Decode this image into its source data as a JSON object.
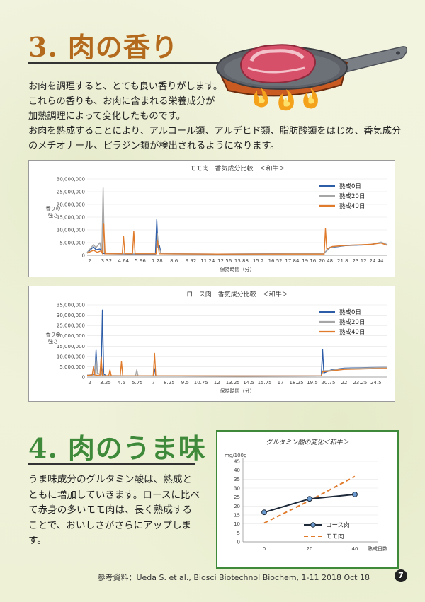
{
  "section3": {
    "title": "3. 肉の香り",
    "paragraph_lines": [
      "お肉を調理すると、とても良い香りがします。",
      "これらの香りも、お肉に含まれる栄養成分が",
      "加熱調理によって変化したものです。",
      "お肉を熟成することにより、アルコール類、アルデヒド類、脂肪酸類をはじめ、香気成分",
      "のメチオナール、ピラジン類が検出されるようになります。"
    ]
  },
  "section4": {
    "title": "4. 肉のうま味",
    "paragraph_lines": [
      "うま味成分のグルタミン酸は、熟成と",
      "ともに増加していきます。ロースに比べ",
      "て赤身の多いモモ肉は、長く熟成する",
      "ことで、おいしさがさらにアップします。"
    ]
  },
  "reference": "参考資料：Ueda S. et al., Biosci Biotechnol Biochem, 1-11 2018 Oct 18",
  "page_number": "7",
  "chart_data": [
    {
      "type": "line",
      "title": "モモ肉　香気成分比較　＜和牛＞",
      "ylabel": "香りの強さ",
      "xlabel": "保持時間（分）",
      "y_ticks": [
        "0",
        "5,000,000",
        "10,000,000",
        "15,000,000",
        "20,000,000",
        "25,000,000",
        "30,000,000"
      ],
      "x_ticks": [
        "2",
        "3.32",
        "4.64",
        "5.96",
        "7.28",
        "8.6",
        "9.92",
        "11.24",
        "12.56",
        "13.88",
        "15.2",
        "16.52",
        "17.84",
        "19.16",
        "20.48",
        "21.8",
        "23.12",
        "24.44"
      ],
      "ylim": [
        0,
        30000000
      ],
      "xlim": [
        1.8,
        25.3
      ],
      "legend_position": "right",
      "series": [
        {
          "name": "熟成0日",
          "color": "#2e5da8",
          "points": [
            [
              1.8,
              1000000
            ],
            [
              2.3,
              3300000
            ],
            [
              2.5,
              2200000
            ],
            [
              2.8,
              2500000
            ],
            [
              3.0,
              900000
            ],
            [
              3.2,
              600000
            ],
            [
              5.0,
              500000
            ],
            [
              7.15,
              500000
            ],
            [
              7.25,
              14000000
            ],
            [
              7.35,
              3000000
            ],
            [
              7.45,
              4000000
            ],
            [
              7.6,
              600000
            ],
            [
              12,
              500000
            ],
            [
              20.3,
              700000
            ],
            [
              20.8,
              3000000
            ],
            [
              22,
              3800000
            ],
            [
              24,
              4200000
            ],
            [
              24.8,
              5000000
            ],
            [
              25.3,
              4000000
            ]
          ]
        },
        {
          "name": "熟成20日",
          "color": "#a6a6a6",
          "points": [
            [
              1.8,
              1100000
            ],
            [
              2.3,
              4200000
            ],
            [
              2.5,
              3000000
            ],
            [
              2.8,
              5000000
            ],
            [
              2.95,
              1000000
            ],
            [
              3.05,
              26500000
            ],
            [
              3.15,
              1000000
            ],
            [
              4.6,
              600000
            ],
            [
              7.2,
              600000
            ],
            [
              7.3,
              8500000
            ],
            [
              7.4,
              3500000
            ],
            [
              7.6,
              600000
            ],
            [
              12,
              500000
            ],
            [
              20.3,
              700000
            ],
            [
              20.8,
              3200000
            ],
            [
              22,
              3900000
            ],
            [
              24,
              4300000
            ],
            [
              24.8,
              5200000
            ],
            [
              25.3,
              4200000
            ]
          ]
        },
        {
          "name": "熟成40日",
          "color": "#e07b2c",
          "points": [
            [
              1.8,
              900000
            ],
            [
              2.3,
              2000000
            ],
            [
              2.6,
              1200000
            ],
            [
              2.9,
              1800000
            ],
            [
              3.0,
              600000
            ],
            [
              3.1,
              12500000
            ],
            [
              3.2,
              600000
            ],
            [
              4.55,
              600000
            ],
            [
              4.65,
              7500000
            ],
            [
              4.75,
              600000
            ],
            [
              5.35,
              600000
            ],
            [
              5.45,
              9500000
            ],
            [
              5.55,
              600000
            ],
            [
              7.2,
              600000
            ],
            [
              7.3,
              6000000
            ],
            [
              7.45,
              600000
            ],
            [
              12,
              500000
            ],
            [
              20.35,
              500000
            ],
            [
              20.45,
              10500000
            ],
            [
              20.55,
              2500000
            ],
            [
              21,
              3500000
            ],
            [
              22,
              3900000
            ],
            [
              24,
              4300000
            ],
            [
              24.8,
              4800000
            ],
            [
              25.3,
              3900000
            ]
          ]
        }
      ]
    },
    {
      "type": "line",
      "title": "ロース肉　香気成分比較　＜和牛＞",
      "ylabel": "香りの強さ",
      "xlabel": "保持時間（分）",
      "y_ticks": [
        "0",
        "5,000,000",
        "10,000,000",
        "15,000,000",
        "20,000,000",
        "25,000,000",
        "30,000,000",
        "35,000,000"
      ],
      "x_ticks": [
        "2",
        "3.25",
        "4.5",
        "5.75",
        "7",
        "8.25",
        "9.5",
        "10.75",
        "12",
        "13.25",
        "14.5",
        "15.75",
        "17",
        "18.25",
        "19.5",
        "20.75",
        "22",
        "23.25",
        "24.5"
      ],
      "ylim": [
        0,
        35000000
      ],
      "xlim": [
        1.8,
        25.4
      ],
      "legend_position": "right",
      "series": [
        {
          "name": "熟成0日",
          "color": "#2e5da8",
          "points": [
            [
              1.8,
              900000
            ],
            [
              2.4,
              1200000
            ],
            [
              2.5,
              13000000
            ],
            [
              2.6,
              2000000
            ],
            [
              2.9,
              1000000
            ],
            [
              3.0,
              32500000
            ],
            [
              3.1,
              1500000
            ],
            [
              3.3,
              600000
            ],
            [
              7.0,
              600000
            ],
            [
              7.1,
              4000000
            ],
            [
              7.2,
              600000
            ],
            [
              14,
              500000
            ],
            [
              20.2,
              600000
            ],
            [
              20.3,
              13500000
            ],
            [
              20.4,
              2000000
            ],
            [
              21,
              3500000
            ],
            [
              22,
              4300000
            ],
            [
              24,
              4600000
            ],
            [
              25.4,
              4700000
            ]
          ]
        },
        {
          "name": "熟成20日",
          "color": "#a6a6a6",
          "points": [
            [
              1.8,
              900000
            ],
            [
              2.4,
              1000000
            ],
            [
              2.5,
              9000000
            ],
            [
              2.6,
              2000000
            ],
            [
              2.9,
              800000
            ],
            [
              3.0,
              4000000
            ],
            [
              3.1,
              700000
            ],
            [
              5.6,
              600000
            ],
            [
              5.7,
              3500000
            ],
            [
              5.8,
              600000
            ],
            [
              14,
              500000
            ],
            [
              20.2,
              600000
            ],
            [
              20.3,
              3000000
            ],
            [
              21,
              3300000
            ],
            [
              22,
              4100000
            ],
            [
              24,
              4500000
            ],
            [
              25.4,
              4700000
            ]
          ]
        },
        {
          "name": "熟成40日",
          "color": "#e07b2c",
          "points": [
            [
              1.8,
              800000
            ],
            [
              2.2,
              1000000
            ],
            [
              2.3,
              5000000
            ],
            [
              2.4,
              1000000
            ],
            [
              2.8,
              700000
            ],
            [
              2.9,
              10000000
            ],
            [
              3.0,
              600000
            ],
            [
              3.5,
              700000
            ],
            [
              3.6,
              3500000
            ],
            [
              3.7,
              600000
            ],
            [
              4.4,
              600000
            ],
            [
              4.5,
              7500000
            ],
            [
              4.6,
              600000
            ],
            [
              7.0,
              600000
            ],
            [
              7.1,
              11500000
            ],
            [
              7.2,
              600000
            ],
            [
              14,
              500000
            ],
            [
              20.2,
              600000
            ],
            [
              20.3,
              2500000
            ],
            [
              21,
              3000000
            ],
            [
              22,
              3700000
            ],
            [
              24,
              4000000
            ],
            [
              25.4,
              4200000
            ]
          ]
        }
      ]
    },
    {
      "type": "line",
      "title": "グルタミン酸の変化＜和牛＞",
      "y_unit": "mg/100g",
      "xlabel": "熟成日数",
      "categories": [
        "0",
        "20",
        "40"
      ],
      "y_ticks": [
        "0",
        "5",
        "10",
        "15",
        "20",
        "25",
        "30",
        "35",
        "40",
        "45"
      ],
      "ylim": [
        0,
        45
      ],
      "legend_position": "bottom-right",
      "series": [
        {
          "name": "ロース肉",
          "color": "#1e2a3a",
          "marker_color": "#6b9bd0",
          "values": [
            16.5,
            24,
            26.5
          ]
        },
        {
          "name": "モモ肉",
          "color": "#e07b2c",
          "values": [
            10.5,
            23,
            36.5
          ]
        }
      ]
    }
  ]
}
